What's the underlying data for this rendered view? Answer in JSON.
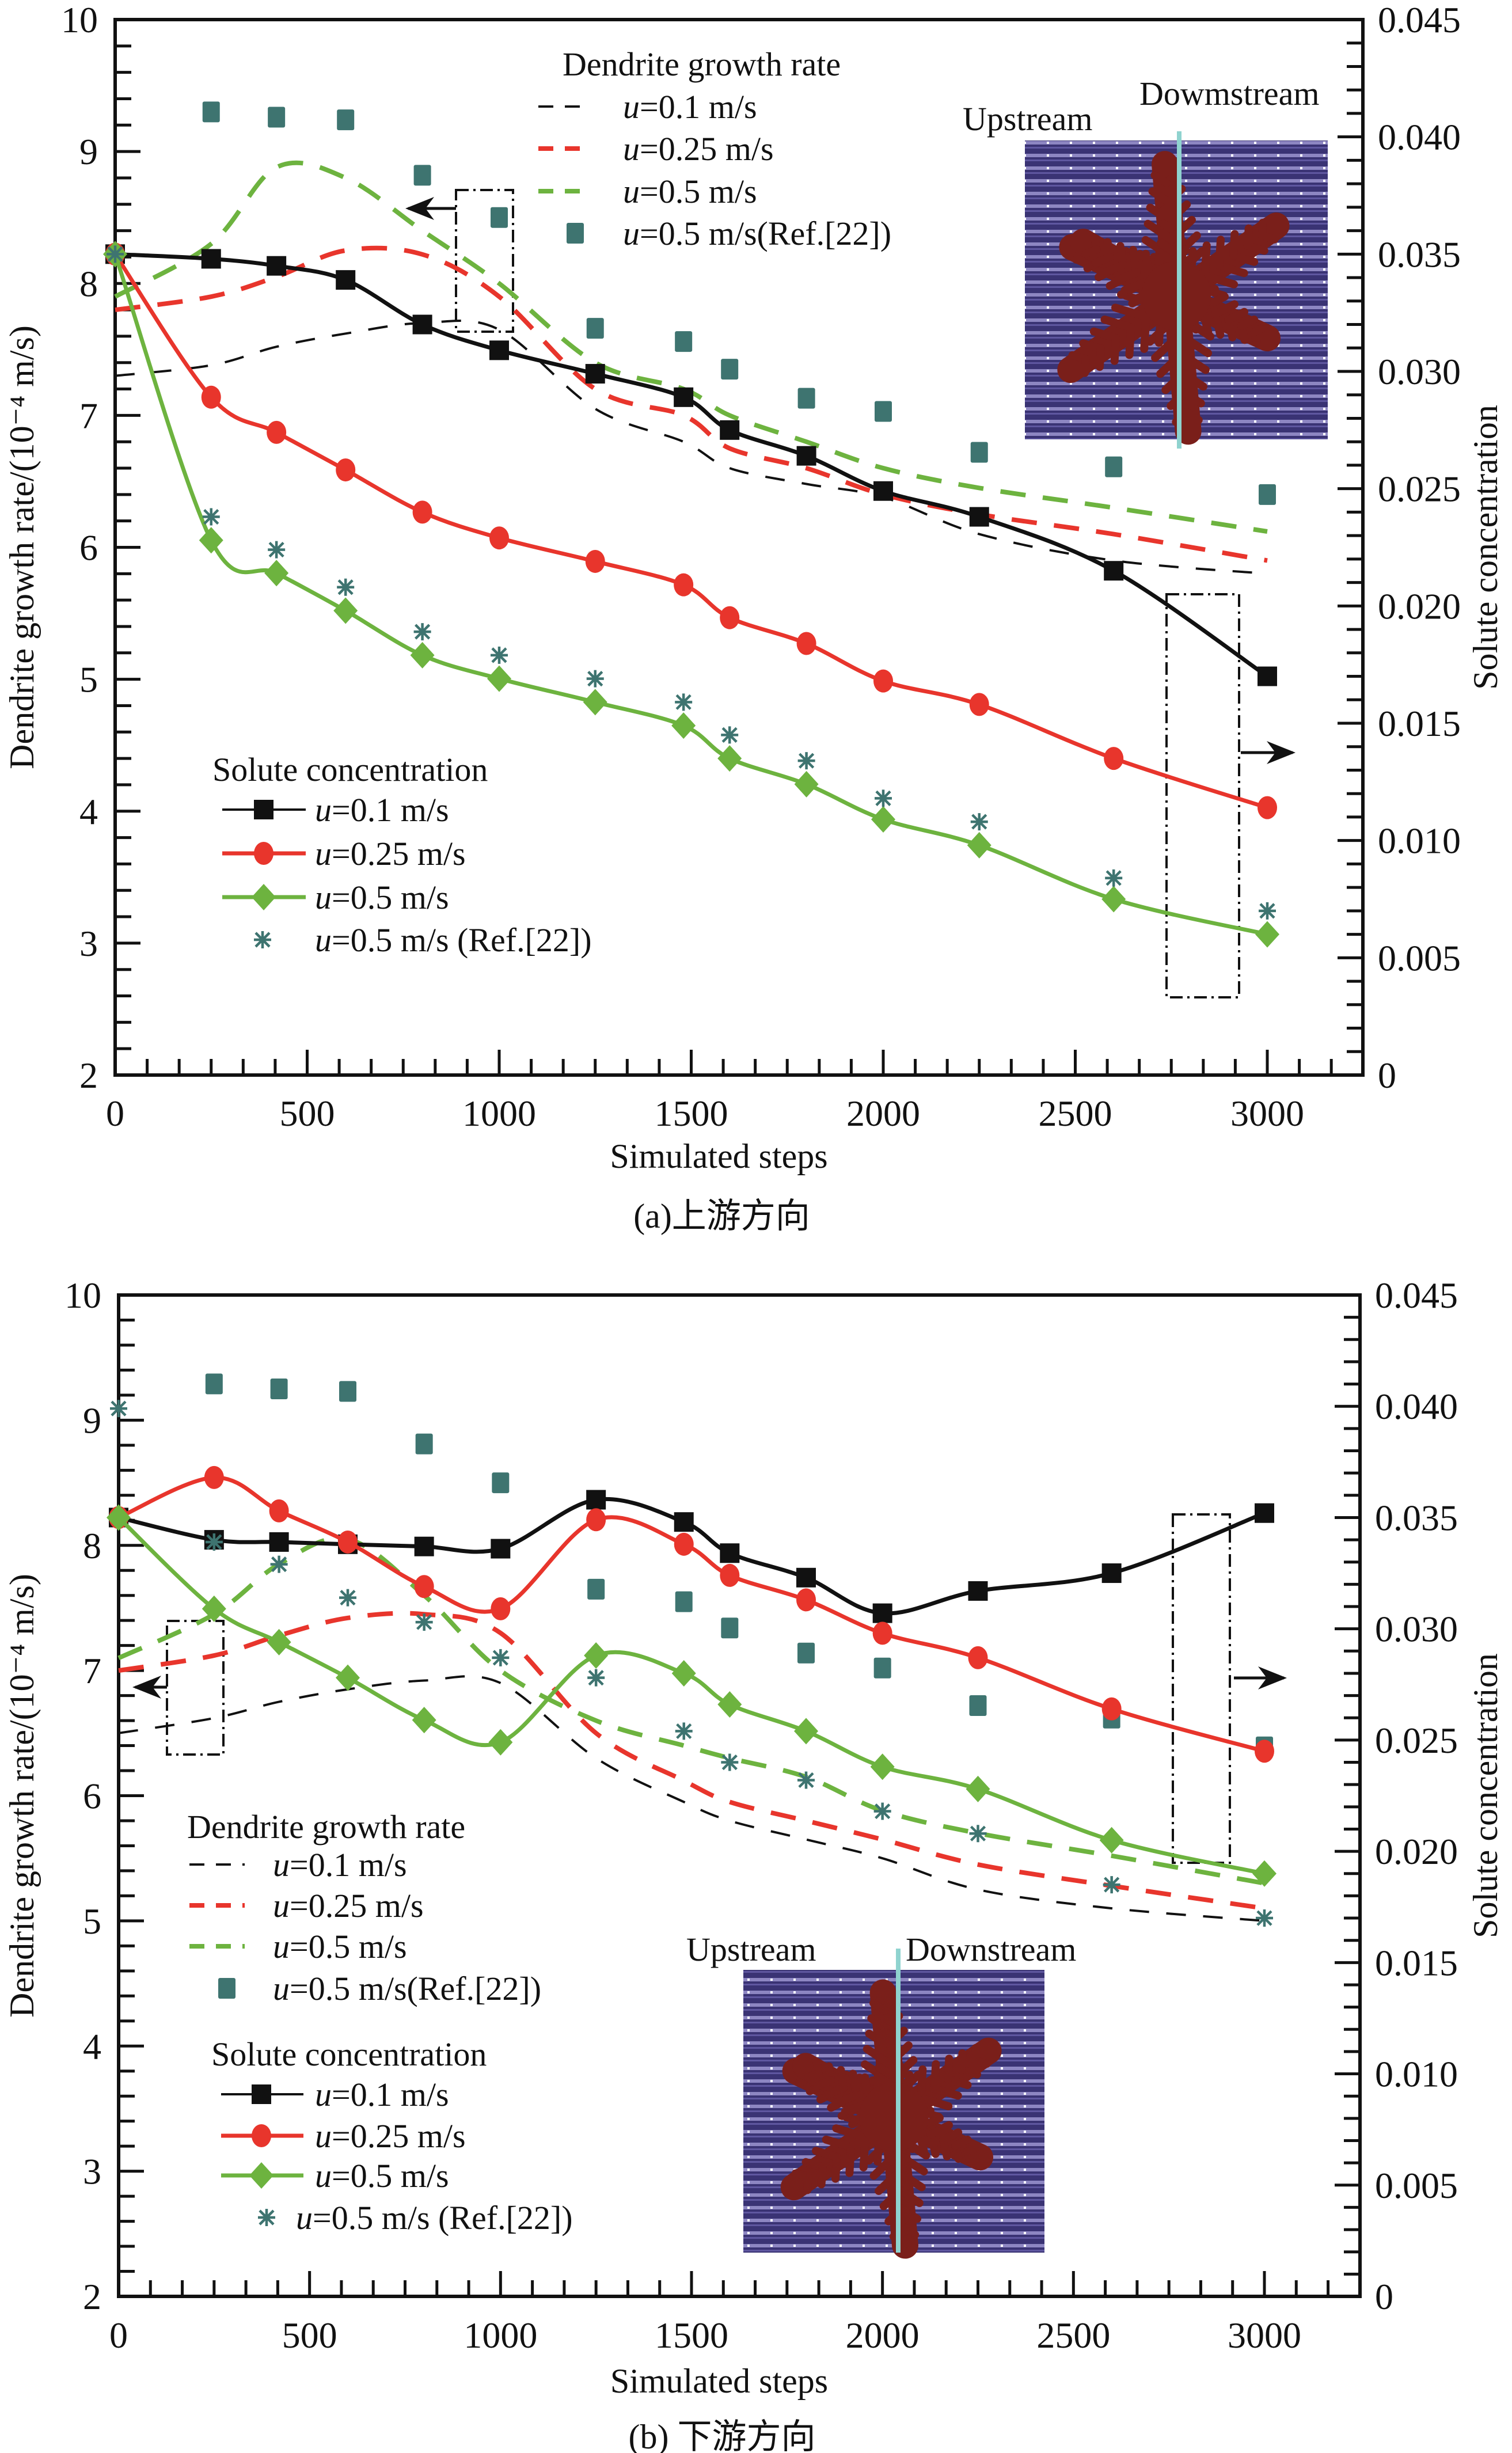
{
  "figure": {
    "captions": [
      "(a)上游方向",
      "(b) 下游方向"
    ]
  },
  "chart_data": [
    {
      "type": "line",
      "panel": "a",
      "caption": "(a)上游方向",
      "xlabel": "Simulated steps",
      "ylabel_left": "Dendrite growth rate/(10⁻⁴ m/s)",
      "ylabel_right": "Solute concentration",
      "xlim": [
        0,
        3250
      ],
      "ylim_left": [
        2,
        10
      ],
      "ylim_right": [
        0,
        0.045
      ],
      "x_ticks": [
        0,
        500,
        1000,
        1500,
        2000,
        2500,
        3000
      ],
      "x_tick_labels": [
        "0",
        "500",
        "1000",
        "1500",
        "2000",
        "2500",
        "3000"
      ],
      "y_left_ticks": [
        2,
        3,
        4,
        5,
        6,
        7,
        8,
        9,
        10
      ],
      "y_left_tick_labels": [
        "2",
        "3",
        "4",
        "5",
        "6",
        "7",
        "8",
        "9",
        "10"
      ],
      "y_right_ticks": [
        0,
        0.005,
        0.01,
        0.015,
        0.02,
        0.025,
        0.03,
        0.035,
        0.04,
        0.045
      ],
      "y_right_tick_labels": [
        "0",
        "0.005",
        "0.010",
        "0.015",
        "0.020",
        "0.025",
        "0.030",
        "0.035",
        "0.040",
        "0.045"
      ],
      "grid": false,
      "legend_growth": {
        "title": "Dendrite growth rate",
        "entries": [
          "u=0.1 m/s",
          "u=0.25 m/s",
          "u=0.5 m/s",
          "u=0.5 m/s(Ref.[22])"
        ],
        "placement": "top-center"
      },
      "legend_solute": {
        "title": "Solute concentration",
        "entries": [
          "u=0.1 m/s",
          "u=0.25 m/s",
          "u=0.5 m/s",
          "u=0.5 m/s (Ref.[22])"
        ],
        "placement": "bottom-left"
      },
      "inset": {
        "left_label": "Upstream",
        "right_label": "Dowmstream",
        "description": "dendrite morphology in flow field"
      },
      "annotations": [
        {
          "type": "dash-dot-box",
          "target_axis": "left",
          "arrow": "left"
        },
        {
          "type": "dash-dot-box",
          "target_axis": "right",
          "arrow": "right"
        }
      ],
      "growth_series": [
        {
          "name": "u=0.1 m/s",
          "style": "dashed-thin",
          "color": "#111111",
          "x": [
            0,
            250,
            420,
            600,
            800,
            1000,
            1250,
            1480,
            1600,
            1800,
            2000,
            2250,
            2600,
            3000
          ],
          "y": [
            7.3,
            7.38,
            7.52,
            7.62,
            7.7,
            7.65,
            7.05,
            6.8,
            6.6,
            6.48,
            6.38,
            6.1,
            5.9,
            5.8
          ]
        },
        {
          "name": "u=0.25 m/s",
          "style": "dashed",
          "color": "#e8352c",
          "x": [
            0,
            250,
            420,
            600,
            800,
            1000,
            1250,
            1480,
            1600,
            1800,
            2000,
            2250,
            2600,
            3000
          ],
          "y": [
            7.8,
            7.9,
            8.05,
            8.25,
            8.22,
            7.9,
            7.2,
            7.0,
            6.75,
            6.6,
            6.4,
            6.25,
            6.1,
            5.9
          ]
        },
        {
          "name": "u=0.5 m/s",
          "style": "dashed",
          "color": "#6db33f",
          "x": [
            0,
            250,
            420,
            600,
            800,
            1000,
            1250,
            1480,
            1600,
            1800,
            2000,
            2250,
            2600,
            3000
          ],
          "y": [
            7.9,
            8.3,
            8.88,
            8.8,
            8.4,
            8.0,
            7.4,
            7.2,
            7.0,
            6.8,
            6.6,
            6.45,
            6.3,
            6.12
          ]
        },
        {
          "name": "u=0.5 m/s(Ref.[22])",
          "style": "square-marker",
          "color": "#3e7470",
          "x": [
            250,
            420,
            600,
            800,
            1000,
            1250,
            1480,
            1600,
            1800,
            2000,
            2250,
            2600,
            3000
          ],
          "y": [
            9.3,
            9.26,
            9.24,
            8.82,
            8.5,
            7.66,
            7.56,
            7.35,
            7.13,
            7.03,
            6.72,
            6.61,
            6.4
          ]
        }
      ],
      "solute_series": [
        {
          "name": "u=0.1 m/s",
          "marker": "square",
          "color": "#111111",
          "x": [
            0,
            250,
            420,
            600,
            800,
            1000,
            1250,
            1480,
            1600,
            1800,
            2000,
            2250,
            2600,
            3000
          ],
          "y": [
            0.035,
            0.0348,
            0.0345,
            0.0339,
            0.032,
            0.0309,
            0.0299,
            0.0289,
            0.0275,
            0.0264,
            0.0249,
            0.0238,
            0.0215,
            0.017
          ]
        },
        {
          "name": "u=0.25 m/s",
          "marker": "circle",
          "color": "#e8352c",
          "x": [
            0,
            250,
            420,
            600,
            800,
            1000,
            1250,
            1480,
            1600,
            1800,
            2000,
            2250,
            2600,
            3000
          ],
          "y": [
            0.035,
            0.0289,
            0.0274,
            0.0258,
            0.024,
            0.0229,
            0.0219,
            0.0209,
            0.0195,
            0.0184,
            0.0168,
            0.0158,
            0.0135,
            0.0114
          ]
        },
        {
          "name": "u=0.5 m/s",
          "marker": "diamond",
          "color": "#6db33f",
          "x": [
            0,
            250,
            420,
            600,
            800,
            1000,
            1250,
            1480,
            1600,
            1800,
            2000,
            2250,
            2600,
            3000
          ],
          "y": [
            0.035,
            0.0228,
            0.0214,
            0.0198,
            0.0179,
            0.0169,
            0.0159,
            0.0149,
            0.0135,
            0.0124,
            0.0109,
            0.0098,
            0.0075,
            0.006
          ]
        },
        {
          "name": "u=0.5 m/s (Ref.[22])",
          "marker": "asterisk",
          "color": "#3e7470",
          "x": [
            0,
            250,
            420,
            600,
            800,
            1000,
            1250,
            1480,
            1600,
            1800,
            2000,
            2250,
            2600,
            3000
          ],
          "y": [
            0.035,
            0.0238,
            0.0224,
            0.0208,
            0.0189,
            0.0179,
            0.0169,
            0.0159,
            0.0145,
            0.0134,
            0.0118,
            0.0108,
            0.0084,
            0.007
          ]
        }
      ]
    },
    {
      "type": "line",
      "panel": "b",
      "caption": "(b) 下游方向",
      "xlabel": "Simulated steps",
      "ylabel_left": "Dendrite growth rate/(10⁻⁴ m/s)",
      "ylabel_right": "Solute concentration",
      "xlim": [
        0,
        3250
      ],
      "ylim_left": [
        2,
        10
      ],
      "ylim_right": [
        0,
        0.045
      ],
      "x_ticks": [
        0,
        500,
        1000,
        1500,
        2000,
        2500,
        3000
      ],
      "x_tick_labels": [
        "0",
        "500",
        "1000",
        "1500",
        "2000",
        "2500",
        "3000"
      ],
      "y_left_ticks": [
        2,
        3,
        4,
        5,
        6,
        7,
        8,
        9,
        10
      ],
      "y_left_tick_labels": [
        "2",
        "3",
        "4",
        "5",
        "6",
        "7",
        "8",
        "9",
        "10"
      ],
      "y_right_ticks": [
        0,
        0.005,
        0.01,
        0.015,
        0.02,
        0.025,
        0.03,
        0.035,
        0.04,
        0.045
      ],
      "y_right_tick_labels": [
        "0",
        "0.005",
        "0.010",
        "0.015",
        "0.020",
        "0.025",
        "0.030",
        "0.035",
        "0.040",
        "0.045"
      ],
      "grid": false,
      "legend_growth": {
        "title": "Dendrite growth rate",
        "entries": [
          "u=0.1 m/s",
          "u=0.25 m/s",
          "u=0.5 m/s",
          "u=0.5 m/s(Ref.[22])"
        ],
        "placement": "bottom-left"
      },
      "legend_solute": {
        "title": "Solute concentration",
        "entries": [
          "u=0.1 m/s",
          "u=0.25 m/s",
          "u=0.5 m/s",
          "u=0.5 m/s (Ref.[22])"
        ],
        "placement": "bottom-left"
      },
      "inset": {
        "left_label": "Upstream",
        "right_label": "Downstream",
        "description": "dendrite morphology in flow field"
      },
      "annotations": [
        {
          "type": "dash-dot-box",
          "target_axis": "left",
          "arrow": "left"
        },
        {
          "type": "dash-dot-box",
          "target_axis": "right",
          "arrow": "right"
        }
      ],
      "growth_series": [
        {
          "name": "u=0.1 m/s",
          "style": "dashed-thin",
          "color": "#111111",
          "x": [
            0,
            250,
            420,
            600,
            800,
            1000,
            1250,
            1480,
            1600,
            1800,
            2000,
            2250,
            2600,
            3000
          ],
          "y": [
            6.5,
            6.62,
            6.75,
            6.85,
            6.92,
            6.9,
            6.3,
            5.95,
            5.8,
            5.65,
            5.5,
            5.25,
            5.1,
            5.0
          ]
        },
        {
          "name": "u=0.25 m/s",
          "style": "dashed",
          "color": "#e8352c",
          "x": [
            0,
            250,
            420,
            600,
            800,
            1000,
            1250,
            1480,
            1600,
            1800,
            2000,
            2250,
            2600,
            3000
          ],
          "y": [
            7.0,
            7.12,
            7.28,
            7.42,
            7.45,
            7.3,
            6.5,
            6.12,
            5.95,
            5.8,
            5.65,
            5.45,
            5.28,
            5.1
          ]
        },
        {
          "name": "u=0.5 m/s",
          "style": "dashed",
          "color": "#6db33f",
          "x": [
            0,
            250,
            420,
            600,
            800,
            1000,
            1250,
            1480,
            1600,
            1800,
            2000,
            2250,
            2600,
            3000
          ],
          "y": [
            7.1,
            7.45,
            7.85,
            8.05,
            7.6,
            7.0,
            6.6,
            6.4,
            6.3,
            6.15,
            5.88,
            5.7,
            5.52,
            5.3
          ]
        },
        {
          "name": "u=0.5 m/s(Ref.[22])",
          "style": "square-marker",
          "color": "#3e7470",
          "x": [
            250,
            420,
            600,
            800,
            1000,
            1250,
            1480,
            1600,
            1800,
            2000,
            2250,
            2600,
            3000
          ],
          "y": [
            9.29,
            9.25,
            9.23,
            8.81,
            8.5,
            7.65,
            7.55,
            7.34,
            7.14,
            7.02,
            6.72,
            6.62,
            6.39
          ]
        }
      ],
      "solute_series": [
        {
          "name": "u=0.1 m/s",
          "marker": "square",
          "color": "#111111",
          "x": [
            0,
            250,
            420,
            600,
            800,
            1000,
            1250,
            1480,
            1600,
            1800,
            2000,
            2250,
            2600,
            3000
          ],
          "y": [
            0.035,
            0.034,
            0.0339,
            0.0338,
            0.0337,
            0.0336,
            0.0358,
            0.0348,
            0.0334,
            0.0323,
            0.0307,
            0.0317,
            0.0325,
            0.0352
          ]
        },
        {
          "name": "u=0.25 m/s",
          "marker": "circle",
          "color": "#e8352c",
          "x": [
            0,
            250,
            420,
            600,
            800,
            1000,
            1250,
            1480,
            1600,
            1800,
            2000,
            2250,
            2600,
            3000
          ],
          "y": [
            0.035,
            0.0368,
            0.0353,
            0.0339,
            0.0319,
            0.0309,
            0.0349,
            0.0338,
            0.0324,
            0.0313,
            0.0298,
            0.0287,
            0.0264,
            0.0245
          ]
        },
        {
          "name": "u=0.5 m/s",
          "marker": "diamond",
          "color": "#6db33f",
          "x": [
            0,
            250,
            420,
            600,
            800,
            1000,
            1250,
            1480,
            1600,
            1800,
            2000,
            2250,
            2600,
            3000
          ],
          "y": [
            0.035,
            0.0309,
            0.0294,
            0.0278,
            0.0259,
            0.0249,
            0.0288,
            0.028,
            0.0266,
            0.0254,
            0.0238,
            0.0228,
            0.0205,
            0.019
          ]
        },
        {
          "name": "u=0.5 m/s (Ref.[22])",
          "marker": "asterisk",
          "color": "#3e7470",
          "x": [
            0,
            250,
            420,
            600,
            800,
            1000,
            1250,
            1480,
            1600,
            1800,
            2000,
            2250,
            2600,
            3000
          ],
          "y": [
            0.0399,
            0.0339,
            0.0329,
            0.0314,
            0.0303,
            0.0287,
            0.0278,
            0.0254,
            0.024,
            0.0232,
            0.0218,
            0.0208,
            0.0185,
            0.017
          ]
        }
      ]
    }
  ]
}
